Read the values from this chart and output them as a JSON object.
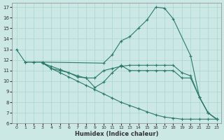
{
  "xlabel": "Humidex (Indice chaleur)",
  "background_color": "#cce8e4",
  "grid_color": "#aad4d0",
  "line_color": "#2a7a6a",
  "xlim": [
    -0.5,
    23.5
  ],
  "ylim": [
    6,
    17.4
  ],
  "xticks": [
    0,
    1,
    2,
    3,
    4,
    5,
    6,
    7,
    8,
    9,
    10,
    11,
    12,
    13,
    14,
    15,
    16,
    17,
    18,
    19,
    20,
    21,
    22,
    23
  ],
  "yticks": [
    6,
    7,
    8,
    9,
    10,
    11,
    12,
    13,
    14,
    15,
    16,
    17
  ],
  "series": [
    {
      "x": [
        0,
        1,
        2,
        3,
        10,
        11,
        12,
        13,
        14,
        15,
        16,
        17,
        18,
        20,
        21,
        22,
        23
      ],
      "y": [
        13.0,
        11.8,
        11.8,
        11.8,
        11.7,
        12.5,
        13.8,
        14.2,
        15.0,
        15.8,
        17.0,
        16.9,
        15.9,
        12.4,
        8.5,
        7.0,
        6.4
      ]
    },
    {
      "x": [
        1,
        2,
        3,
        4,
        5,
        6,
        7,
        8,
        9,
        10,
        11,
        12,
        13,
        14,
        15,
        16,
        17,
        18,
        19,
        20,
        21,
        22,
        23
      ],
      "y": [
        11.8,
        11.8,
        11.8,
        11.2,
        11.0,
        10.8,
        10.4,
        10.3,
        9.4,
        9.9,
        10.8,
        11.5,
        11.0,
        11.0,
        11.0,
        11.0,
        11.0,
        11.0,
        10.3,
        10.3,
        8.5,
        7.0,
        6.4
      ]
    },
    {
      "x": [
        3,
        4,
        5,
        6,
        7,
        8,
        9,
        10,
        11,
        12,
        13,
        14,
        15,
        16,
        17,
        18,
        19,
        20,
        21,
        22,
        23
      ],
      "y": [
        11.7,
        11.4,
        11.1,
        10.8,
        10.5,
        10.3,
        10.3,
        11.0,
        11.2,
        11.4,
        11.5,
        11.5,
        11.5,
        11.5,
        11.5,
        11.5,
        10.8,
        10.5,
        8.5,
        7.0,
        6.4
      ]
    },
    {
      "x": [
        3,
        4,
        5,
        6,
        7,
        8,
        9,
        10,
        11,
        12,
        13,
        14,
        15,
        16,
        17,
        18,
        19,
        20,
        21,
        22,
        23
      ],
      "y": [
        11.7,
        11.2,
        10.8,
        10.4,
        10.0,
        9.6,
        9.2,
        8.8,
        8.4,
        8.0,
        7.7,
        7.4,
        7.1,
        6.8,
        6.6,
        6.5,
        6.4,
        6.4,
        6.4,
        6.4,
        6.4
      ]
    }
  ]
}
